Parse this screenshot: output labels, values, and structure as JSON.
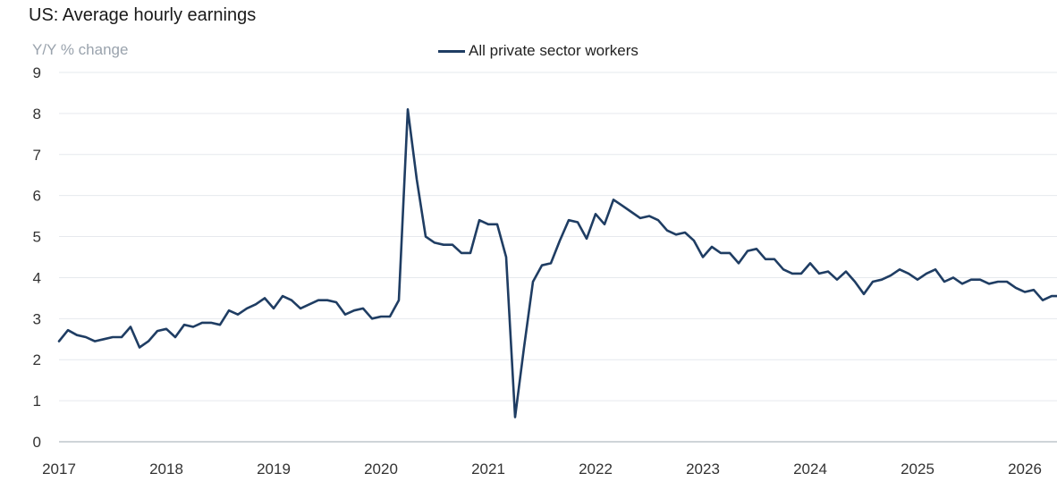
{
  "colors": {
    "line": "#1f3d63",
    "grid": "#e6e9ed",
    "axis": "#bfc5cc"
  },
  "chart_data": {
    "type": "line",
    "title": "US: Average hourly earnings",
    "ylabel": "Y/Y % change",
    "xlabel": "",
    "xlim": [
      2017.0,
      2026.3
    ],
    "ylim": [
      0,
      9
    ],
    "y_ticks": [
      0,
      1,
      2,
      3,
      4,
      5,
      6,
      7,
      8,
      9
    ],
    "x_ticks": [
      "2017",
      "2018",
      "2019",
      "2020",
      "2021",
      "2022",
      "2023",
      "2024",
      "2025",
      "2026"
    ],
    "grid": true,
    "legend_position": "top",
    "series": [
      {
        "name": "All private sector workers",
        "color": "#1f3d63",
        "x": [
          2017.0,
          2017.083,
          2017.167,
          2017.25,
          2017.333,
          2017.417,
          2017.5,
          2017.583,
          2017.667,
          2017.75,
          2017.833,
          2017.917,
          2018.0,
          2018.083,
          2018.167,
          2018.25,
          2018.333,
          2018.417,
          2018.5,
          2018.583,
          2018.667,
          2018.75,
          2018.833,
          2018.917,
          2019.0,
          2019.083,
          2019.167,
          2019.25,
          2019.333,
          2019.417,
          2019.5,
          2019.583,
          2019.667,
          2019.75,
          2019.833,
          2019.917,
          2020.0,
          2020.083,
          2020.167,
          2020.25,
          2020.333,
          2020.417,
          2020.5,
          2020.583,
          2020.667,
          2020.75,
          2020.833,
          2020.917,
          2021.0,
          2021.083,
          2021.167,
          2021.25,
          2021.333,
          2021.417,
          2021.5,
          2021.583,
          2021.667,
          2021.75,
          2021.833,
          2021.917,
          2022.0,
          2022.083,
          2022.167,
          2022.25,
          2022.333,
          2022.417,
          2022.5,
          2022.583,
          2022.667,
          2022.75,
          2022.833,
          2022.917,
          2023.0,
          2023.083,
          2023.167,
          2023.25,
          2023.333,
          2023.417,
          2023.5,
          2023.583,
          2023.667,
          2023.75,
          2023.833,
          2023.917,
          2024.0,
          2024.083,
          2024.167,
          2024.25,
          2024.333,
          2024.417,
          2024.5,
          2024.583,
          2024.667,
          2024.75,
          2024.833,
          2024.917,
          2025.0,
          2025.083,
          2025.167,
          2025.25,
          2025.333,
          2025.417,
          2025.5,
          2025.583,
          2025.667,
          2025.75,
          2025.833,
          2025.917,
          2026.0,
          2026.083,
          2026.167,
          2026.25,
          2026.3
        ],
        "values": [
          2.45,
          2.72,
          2.6,
          2.55,
          2.45,
          2.5,
          2.55,
          2.55,
          2.8,
          2.3,
          2.45,
          2.7,
          2.75,
          2.55,
          2.85,
          2.8,
          2.9,
          2.9,
          2.85,
          3.2,
          3.1,
          3.25,
          3.35,
          3.5,
          3.25,
          3.55,
          3.45,
          3.25,
          3.35,
          3.45,
          3.45,
          3.4,
          3.1,
          3.2,
          3.25,
          3.0,
          3.05,
          3.05,
          3.45,
          8.1,
          6.4,
          5.0,
          4.85,
          4.8,
          4.8,
          4.6,
          4.6,
          5.4,
          5.3,
          5.3,
          4.5,
          0.6,
          2.3,
          3.9,
          4.3,
          4.35,
          4.9,
          5.4,
          5.35,
          4.95,
          5.55,
          5.3,
          5.9,
          5.75,
          5.6,
          5.45,
          5.5,
          5.4,
          5.15,
          5.05,
          5.1,
          4.9,
          4.5,
          4.75,
          4.6,
          4.6,
          4.35,
          4.65,
          4.7,
          4.45,
          4.45,
          4.2,
          4.1,
          4.1,
          4.35,
          4.1,
          4.15,
          3.95,
          4.15,
          3.9,
          3.6,
          3.9,
          3.95,
          4.05,
          4.2,
          4.1,
          3.95,
          4.1,
          4.2,
          3.9,
          4.0,
          3.85,
          3.95,
          3.95,
          3.85,
          3.9,
          3.9,
          3.75,
          3.65,
          3.7,
          3.45,
          3.55,
          3.55
        ]
      }
    ]
  }
}
